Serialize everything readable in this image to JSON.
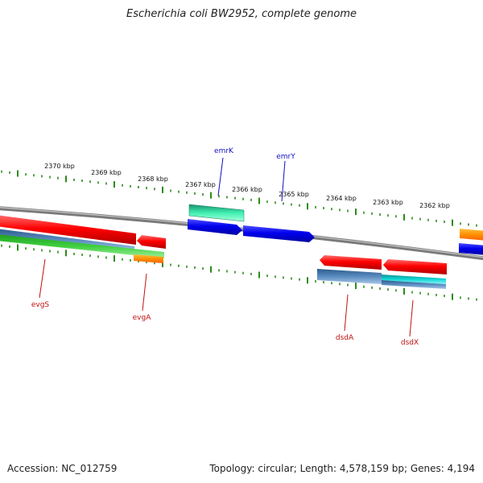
{
  "title": "Escherichia coli BW2952, complete genome",
  "footer": {
    "accession": "Accession: NC_012759",
    "summary": "Topology: circular; Length: 4,578,159 bp; Genes: 4,194"
  },
  "colors": {
    "backbone": "#8a8a8a",
    "ticks": "#2e8b1e",
    "label_forward": "#1010c0",
    "label_reverse": "#c01010"
  },
  "ticks": [
    "2370 kbp",
    "2369 kbp",
    "2368 kbp",
    "2367 kbp",
    "2366 kbp",
    "2365 kbp",
    "2364 kbp",
    "2363 kbp",
    "2362 kbp"
  ],
  "gene_labels": [
    {
      "name": "emrK",
      "strand": "forward"
    },
    {
      "name": "emrY",
      "strand": "forward"
    },
    {
      "name": "evgS",
      "strand": "reverse"
    },
    {
      "name": "evgA",
      "strand": "reverse"
    },
    {
      "name": "dsdA",
      "strand": "reverse"
    },
    {
      "name": "dsdX",
      "strand": "reverse"
    }
  ]
}
